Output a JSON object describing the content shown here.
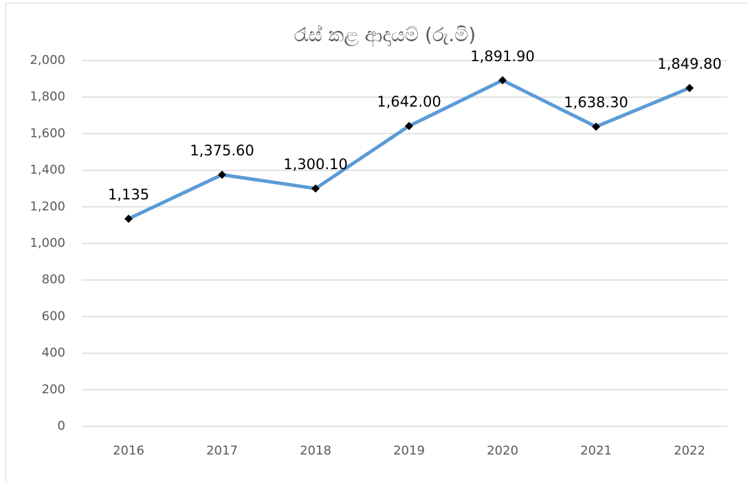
{
  "chart_data": {
    "type": "line",
    "title": "රැස් කළ ආදායම් (රු.මි)",
    "categories": [
      "2016",
      "2017",
      "2018",
      "2019",
      "2020",
      "2021",
      "2022"
    ],
    "series": [
      {
        "name": null,
        "color": "#5b9bd5",
        "values": [
          1135,
          1375.6,
          1300.1,
          1642,
          1891.9,
          1638.3,
          1849.8
        ],
        "value_labels": [
          "1,135",
          "1,375.60",
          "1,300.10",
          "1,642.00",
          "1,891.90",
          "1,638.30",
          "1,849.80"
        ]
      }
    ],
    "ylim": [
      0,
      2000
    ],
    "yticks": [
      0,
      200,
      400,
      600,
      800,
      {
        "value": 1000,
        "label": "1,000"
      },
      {
        "value": 1200,
        "label": "1,200"
      },
      {
        "value": 1400,
        "label": "1,400"
      },
      {
        "value": 1600,
        "label": "1,600"
      },
      {
        "value": 1800,
        "label": "1,800"
      },
      {
        "value": 2000,
        "label": "2,000"
      }
    ],
    "grid": true
  }
}
